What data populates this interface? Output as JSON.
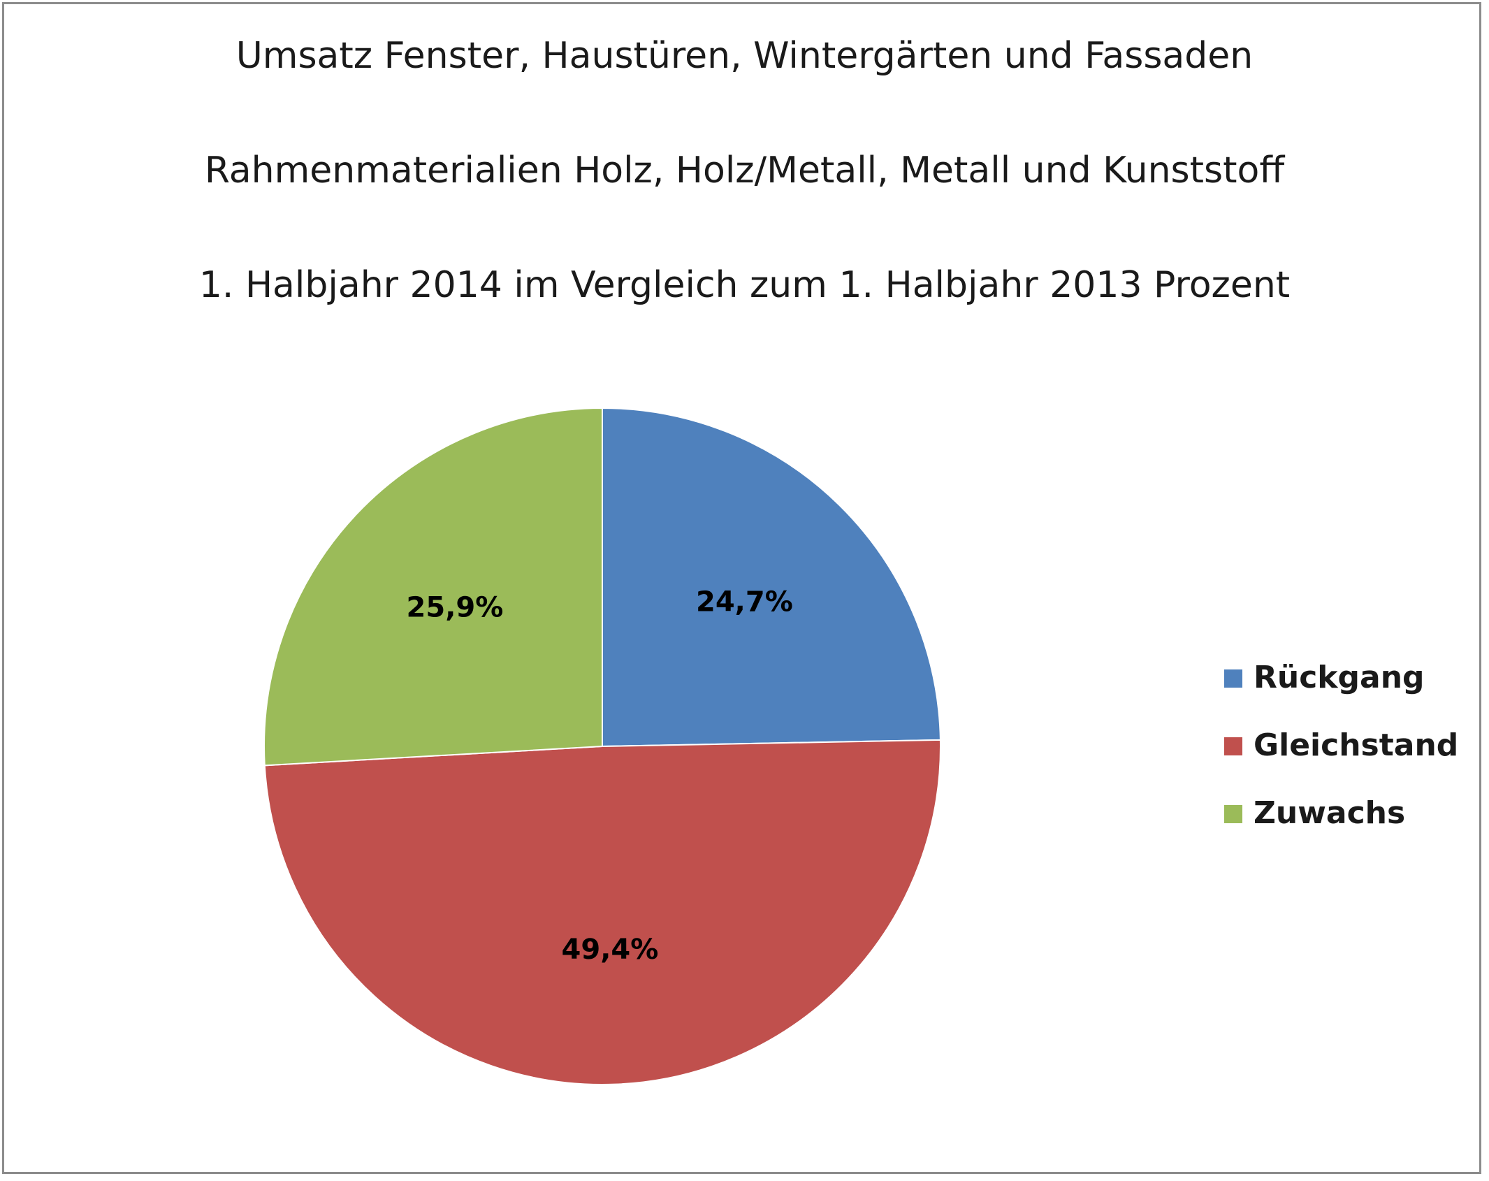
{
  "chart_data": {
    "type": "pie",
    "title": [
      "Umsatz Fenster, Haustüren, Wintergärten und Fassaden",
      "Rahmenmaterialien Holz, Holz/Metall, Metall und Kunststoff",
      "1. Halbjahr 2014 im Vergleich zum 1. Halbjahr 2013 Prozent"
    ],
    "categories": [
      "Rückgang",
      "Gleichstand",
      "Zuwachs"
    ],
    "values": [
      24.7,
      49.4,
      25.9
    ],
    "data_labels": [
      "24,7%",
      "49,4%",
      "25,9%"
    ],
    "colors": [
      "#4f81bd",
      "#c0504d",
      "#9bbb59"
    ],
    "legend_position": "right",
    "start_angle": "12 o'clock, clockwise"
  }
}
